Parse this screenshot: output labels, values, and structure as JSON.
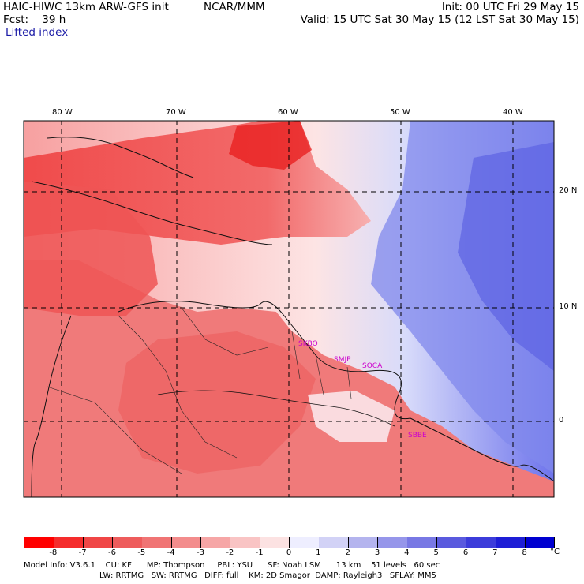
{
  "header": {
    "model": "HAIC-HIWC 13km ARW-GFS init",
    "org": "NCAR/MMM",
    "init": "Init: 00 UTC Fri 29 May 15",
    "fcst": "Fcst:    39 h",
    "valid": "Valid: 15 UTC Sat 30 May 15 (12 LST Sat 30 May 15)",
    "field": "Lifted index"
  },
  "map": {
    "lon_labels": [
      "80 W",
      "70 W",
      "60 W",
      "50 W",
      "40 W"
    ],
    "lat_labels": [
      "20 N",
      "10 N",
      "0"
    ],
    "stations": [
      "SKBO",
      "SMJP",
      "SOCA",
      "SBBE"
    ],
    "station_color": "#cc00cc"
  },
  "colorbar": {
    "ticks": [
      "-8",
      "-7",
      "-6",
      "-5",
      "-4",
      "-3",
      "-2",
      "-1",
      "0",
      "1",
      "2",
      "3",
      "4",
      "5",
      "6",
      "7",
      "8"
    ],
    "unit": "°C",
    "colors": [
      "#ff0000",
      "#f52c2c",
      "#f04646",
      "#ee5c5c",
      "#f07474",
      "#f38c8c",
      "#f6a6a6",
      "#f9c4c4",
      "#fce2e2",
      "#eeeeff",
      "#d2d2f6",
      "#b4b4ee",
      "#9696ea",
      "#7878e4",
      "#5a5ade",
      "#3c3cda",
      "#1e1ed6",
      "#0000d0"
    ]
  },
  "footer": {
    "line1": "Model Info: V3.6.1    CU: KF      MP: Thompson     PBL: YSU      SF: Noah LSM      13 km    51 levels   60 sec",
    "line2": "LW: RRTMG   SW: RRTMG   DIFF: full    KM: 2D Smagor  DAMP: Rayleigh3   SFLAY: MM5"
  }
}
